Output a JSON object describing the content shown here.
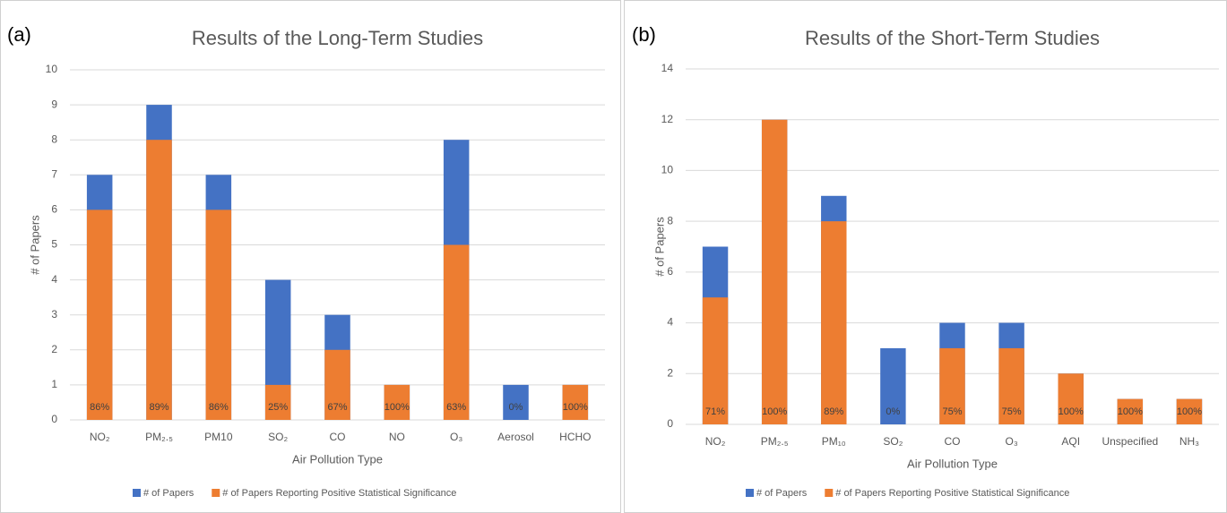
{
  "chart_data": [
    {
      "type": "bar",
      "overlap": true,
      "panel_label": "(a)",
      "title": "Results of the Long-Term Studies",
      "x_label": "Air Pollution Type",
      "y_label": "# of Papers",
      "categories": [
        "NO₂",
        "PM₂.₅",
        "PM10",
        "SO₂",
        "CO",
        "NO",
        "O₃",
        "Aerosol",
        "HCHO"
      ],
      "series": [
        {
          "name": "# of Papers",
          "color": "#4472c4",
          "values": [
            7,
            9,
            7,
            4,
            3,
            1,
            8,
            1,
            1
          ]
        },
        {
          "name": "# of Papers Reporting Positive Statistical Significance",
          "color": "#ed7d31",
          "values": [
            6,
            8,
            6,
            1,
            2,
            1,
            5,
            0,
            1
          ]
        }
      ],
      "bar_labels": [
        "86%",
        "89%",
        "86%",
        "25%",
        "67%",
        "100%",
        "63%",
        "0%",
        "100%"
      ],
      "ylim": [
        0,
        10
      ],
      "yticks": [
        0,
        1,
        2,
        3,
        4,
        5,
        6,
        7,
        8,
        9,
        10
      ],
      "grid": true,
      "legend": "bottom"
    },
    {
      "type": "bar",
      "overlap": true,
      "panel_label": "(b)",
      "title": "Results of the Short-Term Studies",
      "x_label": "Air Pollution Type",
      "y_label": "# of Papers",
      "categories": [
        "NO₂",
        "PM₂.₅",
        "PM₁₀",
        "SO₂",
        "CO",
        "O₃",
        "AQI",
        "Unspecified",
        "NH₃"
      ],
      "series": [
        {
          "name": "# of Papers",
          "color": "#4472c4",
          "values": [
            7,
            12,
            9,
            3,
            4,
            4,
            2,
            1,
            1
          ]
        },
        {
          "name": "# of Papers Reporting Positive Statistical Significance",
          "color": "#ed7d31",
          "values": [
            5,
            12,
            8,
            0,
            3,
            3,
            2,
            1,
            1
          ]
        }
      ],
      "bar_labels": [
        "71%",
        "100%",
        "89%",
        "0%",
        "75%",
        "75%",
        "100%",
        "100%",
        "100%"
      ],
      "ylim": [
        0,
        14
      ],
      "yticks": [
        0,
        2,
        4,
        6,
        8,
        10,
        12,
        14
      ],
      "grid": true,
      "legend": "bottom"
    }
  ]
}
